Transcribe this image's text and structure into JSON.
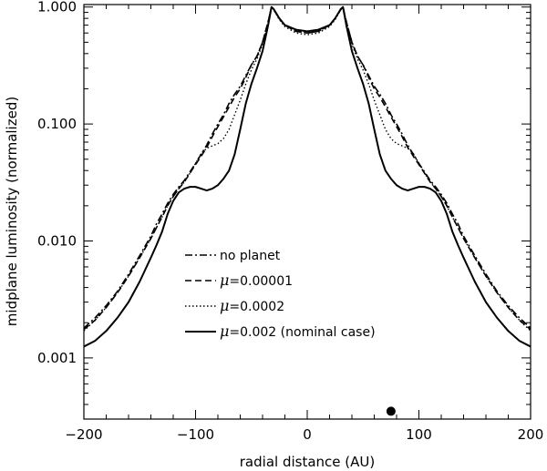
{
  "chart_data": {
    "type": "line",
    "title": "",
    "xlabel": "radial distance (AU)",
    "ylabel": "midplane luminosity (normalized)",
    "xlim": [
      -200,
      200
    ],
    "ylim": [
      0.0003,
      1.05
    ],
    "yscale": "log",
    "grid": false,
    "x_ticks": [
      -200,
      -100,
      0,
      100,
      200
    ],
    "x_tick_labels": [
      "−200",
      "−100",
      "0",
      "100",
      "200"
    ],
    "y_ticks": [
      0.001,
      0.01,
      0.1,
      1.0
    ],
    "y_tick_labels": [
      "0.001",
      "0.010",
      "0.100",
      "1.000"
    ],
    "legend_position": "center",
    "series": [
      {
        "name": "no planet",
        "mu_symbol": "",
        "dash": "dash-dot",
        "x": [
          0,
          10,
          20,
          25,
          30,
          32,
          35,
          40,
          45,
          50,
          55,
          60,
          65,
          70,
          75,
          80,
          85,
          90,
          95,
          100,
          105,
          110,
          115,
          120,
          125,
          130,
          135,
          140,
          150,
          160,
          170,
          180,
          190,
          200
        ],
        "y": [
          0.6,
          0.62,
          0.7,
          0.8,
          0.95,
          1.0,
          0.75,
          0.5,
          0.38,
          0.32,
          0.26,
          0.21,
          0.18,
          0.15,
          0.12,
          0.1,
          0.082,
          0.066,
          0.055,
          0.046,
          0.039,
          0.033,
          0.029,
          0.025,
          0.021,
          0.017,
          0.014,
          0.011,
          0.0075,
          0.0052,
          0.0037,
          0.0028,
          0.0022,
          0.0018
        ]
      },
      {
        "name": "=0.00001",
        "mu_symbol": "μ",
        "dash": "dash",
        "x": [
          0,
          10,
          20,
          25,
          30,
          32,
          35,
          40,
          45,
          50,
          55,
          60,
          65,
          70,
          75,
          80,
          85,
          90,
          95,
          100,
          105,
          110,
          115,
          120,
          125,
          130,
          135,
          140,
          150,
          160,
          170,
          180,
          190,
          200
        ],
        "y": [
          0.6,
          0.62,
          0.7,
          0.8,
          0.95,
          1.0,
          0.75,
          0.5,
          0.38,
          0.32,
          0.25,
          0.2,
          0.17,
          0.14,
          0.115,
          0.095,
          0.078,
          0.063,
          0.053,
          0.045,
          0.038,
          0.032,
          0.028,
          0.024,
          0.02,
          0.016,
          0.013,
          0.0105,
          0.0072,
          0.005,
          0.0036,
          0.0027,
          0.0021,
          0.00175
        ]
      },
      {
        "name": "=0.0002",
        "mu_symbol": "μ",
        "dash": "dot",
        "x": [
          0,
          10,
          20,
          25,
          30,
          32,
          35,
          40,
          45,
          50,
          55,
          60,
          65,
          70,
          75,
          80,
          85,
          90,
          95,
          100,
          105,
          110,
          115,
          120,
          125,
          130,
          135,
          140,
          150,
          160,
          170,
          180,
          190,
          200
        ],
        "y": [
          0.58,
          0.6,
          0.68,
          0.78,
          0.95,
          1.0,
          0.73,
          0.48,
          0.36,
          0.29,
          0.22,
          0.16,
          0.12,
          0.09,
          0.075,
          0.068,
          0.065,
          0.062,
          0.056,
          0.046,
          0.038,
          0.032,
          0.028,
          0.024,
          0.02,
          0.016,
          0.013,
          0.0105,
          0.0072,
          0.005,
          0.0036,
          0.0027,
          0.0021,
          0.0017
        ]
      },
      {
        "name": "=0.002 (nominal case)",
        "mu_symbol": "μ",
        "dash": "solid",
        "x": [
          0,
          10,
          20,
          25,
          30,
          32,
          35,
          40,
          45,
          50,
          55,
          60,
          65,
          70,
          75,
          80,
          85,
          90,
          95,
          100,
          105,
          110,
          115,
          120,
          125,
          130,
          135,
          140,
          150,
          160,
          170,
          180,
          190,
          200
        ],
        "y": [
          0.62,
          0.64,
          0.7,
          0.8,
          0.96,
          1.0,
          0.7,
          0.42,
          0.3,
          0.22,
          0.15,
          0.09,
          0.055,
          0.04,
          0.034,
          0.03,
          0.028,
          0.027,
          0.028,
          0.029,
          0.029,
          0.028,
          0.026,
          0.022,
          0.017,
          0.012,
          0.0092,
          0.0072,
          0.0045,
          0.003,
          0.0022,
          0.0017,
          0.0014,
          0.00125
        ]
      }
    ],
    "marker": {
      "shape": "filled-circle",
      "x": 75,
      "y": 0.00035
    }
  }
}
